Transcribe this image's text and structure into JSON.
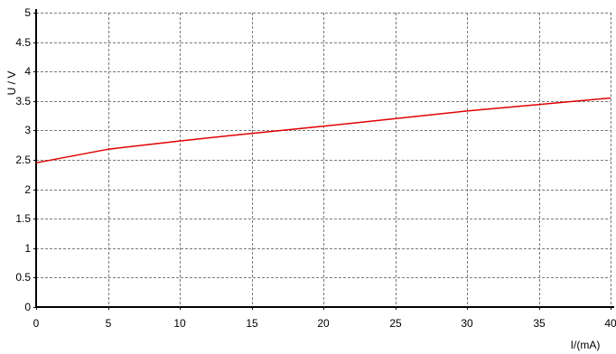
{
  "chart_data": {
    "type": "line",
    "xlabel": "I/(mA)",
    "ylabel": "U / V",
    "xlim": [
      0,
      40
    ],
    "ylim": [
      0,
      5
    ],
    "x_ticks": [
      0,
      5,
      10,
      15,
      20,
      25,
      30,
      35,
      40
    ],
    "y_ticks": [
      0,
      0.5,
      1,
      1.5,
      2,
      2.5,
      3,
      3.5,
      4,
      4.5,
      5
    ],
    "x_tick_labels": [
      "0",
      "5",
      "10",
      "15",
      "20",
      "25",
      "30",
      "35",
      "40"
    ],
    "y_tick_labels": [
      "0",
      "0.5",
      "1",
      "1.5",
      "2",
      "2.5",
      "3",
      "3.5",
      "4",
      "4.5",
      "5"
    ],
    "grid": true,
    "series": [
      {
        "color": "#e00000",
        "x": [
          0,
          5,
          10,
          15,
          20,
          25,
          30,
          35,
          40
        ],
        "y": [
          2.45,
          2.68,
          2.82,
          2.95,
          3.07,
          3.2,
          3.33,
          3.44,
          3.55
        ]
      }
    ]
  }
}
